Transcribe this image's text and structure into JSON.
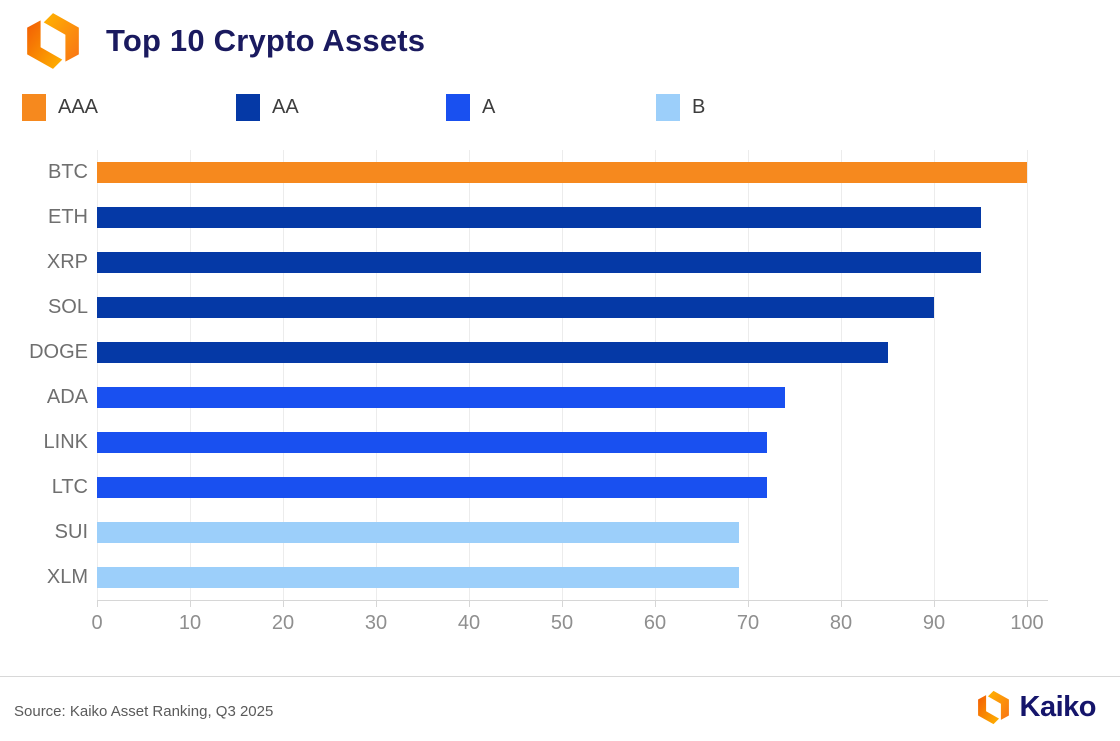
{
  "header": {
    "title": "Top 10 Crypto Assets",
    "logo_icon": "kaiko-hex-mark"
  },
  "legend": {
    "items": [
      {
        "label": "AAA",
        "color": "#F6891E"
      },
      {
        "label": "AA",
        "color": "#0539A6"
      },
      {
        "label": "A",
        "color": "#1950F0"
      },
      {
        "label": "B",
        "color": "#9CCFFA"
      }
    ]
  },
  "chart_data": {
    "type": "bar",
    "orientation": "horizontal",
    "title": "Top 10 Crypto Assets",
    "categories": [
      "BTC",
      "ETH",
      "XRP",
      "SOL",
      "DOGE",
      "ADA",
      "LINK",
      "LTC",
      "SUI",
      "XLM"
    ],
    "values": [
      100,
      95,
      95,
      90,
      85,
      74,
      72,
      72,
      69,
      69
    ],
    "ratings": [
      "AAA",
      "AA",
      "AA",
      "AA",
      "AA",
      "A",
      "A",
      "A",
      "B",
      "B"
    ],
    "rating_colors": {
      "AAA": "#F6891E",
      "AA": "#0539A6",
      "A": "#1950F0",
      "B": "#9CCFFA"
    },
    "xlabel": "",
    "ylabel": "",
    "xticks": [
      0,
      10,
      20,
      30,
      40,
      50,
      60,
      70,
      80,
      90,
      100
    ],
    "xlim": [
      0,
      105
    ],
    "grid": "vertical-only",
    "legend_position": "top"
  },
  "footer": {
    "source": "Source: Kaiko Asset Ranking, Q3 2025",
    "brand": "Kaiko"
  }
}
